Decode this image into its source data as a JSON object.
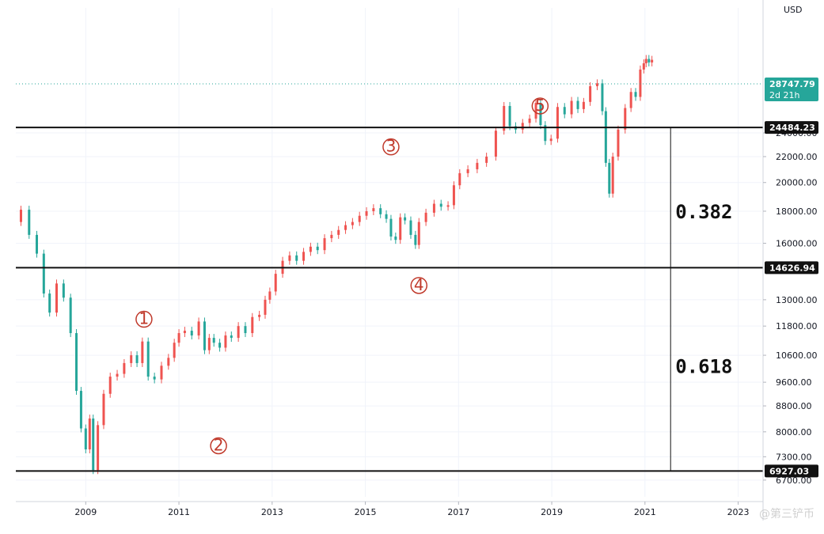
{
  "chart_data": {
    "type": "candlestick",
    "currency_label": "USD",
    "x_ticks": [
      "2009",
      "2011",
      "2013",
      "2015",
      "2017",
      "2019",
      "2021",
      "2023"
    ],
    "y_ticks": [
      6700,
      7300,
      8000,
      8800,
      9600,
      10600,
      11800,
      13000,
      16000,
      18000,
      20000,
      22000,
      24000
    ],
    "ylim": [
      6300,
      38000
    ],
    "y_scale": "log",
    "xlim": [
      2007.5,
      2023.5
    ],
    "levels": [
      {
        "name": "top",
        "value": 24484.23,
        "label": "24484.23"
      },
      {
        "name": "mid",
        "value": 14626.94,
        "label": "14626.94"
      },
      {
        "name": "low",
        "value": 6927.03,
        "label": "6927.03"
      }
    ],
    "current_price": {
      "value": 28747.79,
      "label": "28747.79",
      "countdown": "2d 21h",
      "color": "#26a69a"
    },
    "ratios": [
      {
        "label": "0.382",
        "price": 18000
      },
      {
        "label": "0.618",
        "price": 10200
      }
    ],
    "wave_labels": [
      {
        "label": "1",
        "x": 2010.25,
        "price": 12100
      },
      {
        "label": "2",
        "x": 2011.85,
        "price": 7600
      },
      {
        "label": "3",
        "x": 2015.55,
        "price": 22800
      },
      {
        "label": "4",
        "x": 2016.15,
        "price": 13700
      },
      {
        "label": "5",
        "x": 2018.75,
        "price": 26500
      }
    ],
    "measure_line_x": 2021.55,
    "series": [
      {
        "name": "",
        "points": [
          [
            2007.5,
            17300
          ],
          [
            2007.72,
            18100
          ],
          [
            2007.85,
            16500
          ],
          [
            2008.05,
            15400
          ],
          [
            2008.15,
            13300
          ],
          [
            2008.3,
            12400
          ],
          [
            2008.45,
            13800
          ],
          [
            2008.6,
            13100
          ],
          [
            2008.75,
            11500
          ],
          [
            2008.85,
            9300
          ],
          [
            2008.95,
            8100
          ],
          [
            2009.05,
            7500
          ],
          [
            2009.12,
            8400
          ],
          [
            2009.2,
            6950
          ],
          [
            2009.32,
            8200
          ],
          [
            2009.45,
            9200
          ],
          [
            2009.6,
            9800
          ],
          [
            2009.75,
            9900
          ],
          [
            2009.9,
            10300
          ],
          [
            2010.05,
            10600
          ],
          [
            2010.15,
            10300
          ],
          [
            2010.28,
            11150
          ],
          [
            2010.4,
            9800
          ],
          [
            2010.55,
            9700
          ],
          [
            2010.7,
            10200
          ],
          [
            2010.85,
            10500
          ],
          [
            2010.95,
            11100
          ],
          [
            2011.05,
            11500
          ],
          [
            2011.2,
            11600
          ],
          [
            2011.35,
            11400
          ],
          [
            2011.5,
            12000
          ],
          [
            2011.6,
            10800
          ],
          [
            2011.7,
            11300
          ],
          [
            2011.8,
            11100
          ],
          [
            2011.95,
            10900
          ],
          [
            2012.05,
            11400
          ],
          [
            2012.2,
            11300
          ],
          [
            2012.35,
            11800
          ],
          [
            2012.5,
            11500
          ],
          [
            2012.65,
            12200
          ],
          [
            2012.8,
            12300
          ],
          [
            2012.9,
            13000
          ],
          [
            2013.0,
            13400
          ],
          [
            2013.15,
            14300
          ],
          [
            2013.3,
            15000
          ],
          [
            2013.45,
            15300
          ],
          [
            2013.6,
            15000
          ],
          [
            2013.75,
            15500
          ],
          [
            2013.9,
            15800
          ],
          [
            2014.05,
            15600
          ],
          [
            2014.2,
            16300
          ],
          [
            2014.35,
            16500
          ],
          [
            2014.5,
            16800
          ],
          [
            2014.65,
            17100
          ],
          [
            2014.8,
            17300
          ],
          [
            2014.95,
            17700
          ],
          [
            2015.1,
            18000
          ],
          [
            2015.25,
            18200
          ],
          [
            2015.4,
            17800
          ],
          [
            2015.5,
            17500
          ],
          [
            2015.6,
            16400
          ],
          [
            2015.7,
            16200
          ],
          [
            2015.8,
            17600
          ],
          [
            2015.9,
            17400
          ],
          [
            2016.05,
            16500
          ],
          [
            2016.1,
            15900
          ],
          [
            2016.2,
            17300
          ],
          [
            2016.4,
            17900
          ],
          [
            2016.55,
            18500
          ],
          [
            2016.7,
            18300
          ],
          [
            2016.85,
            18400
          ],
          [
            2016.95,
            19800
          ],
          [
            2017.1,
            20700
          ],
          [
            2017.3,
            21000
          ],
          [
            2017.5,
            21500
          ],
          [
            2017.7,
            22000
          ],
          [
            2017.9,
            24200
          ],
          [
            2018.05,
            26500
          ],
          [
            2018.15,
            24600
          ],
          [
            2018.3,
            24300
          ],
          [
            2018.45,
            24900
          ],
          [
            2018.6,
            25300
          ],
          [
            2018.72,
            26800
          ],
          [
            2018.8,
            24700
          ],
          [
            2018.92,
            23300
          ],
          [
            2019.05,
            23500
          ],
          [
            2019.2,
            26400
          ],
          [
            2019.35,
            25700
          ],
          [
            2019.5,
            27000
          ],
          [
            2019.62,
            26200
          ],
          [
            2019.75,
            26900
          ],
          [
            2019.9,
            28500
          ],
          [
            2020.05,
            28800
          ],
          [
            2020.12,
            26000
          ],
          [
            2020.2,
            21500
          ],
          [
            2020.27,
            19200
          ],
          [
            2020.35,
            22000
          ],
          [
            2020.5,
            24300
          ],
          [
            2020.65,
            26300
          ],
          [
            2020.75,
            27900
          ],
          [
            2020.85,
            27400
          ],
          [
            2020.95,
            30300
          ],
          [
            2021.0,
            31000
          ],
          [
            2021.05,
            31500
          ],
          [
            2021.12,
            31100
          ],
          [
            2021.18,
            31400
          ]
        ]
      }
    ]
  },
  "watermark": "@第三铲币"
}
